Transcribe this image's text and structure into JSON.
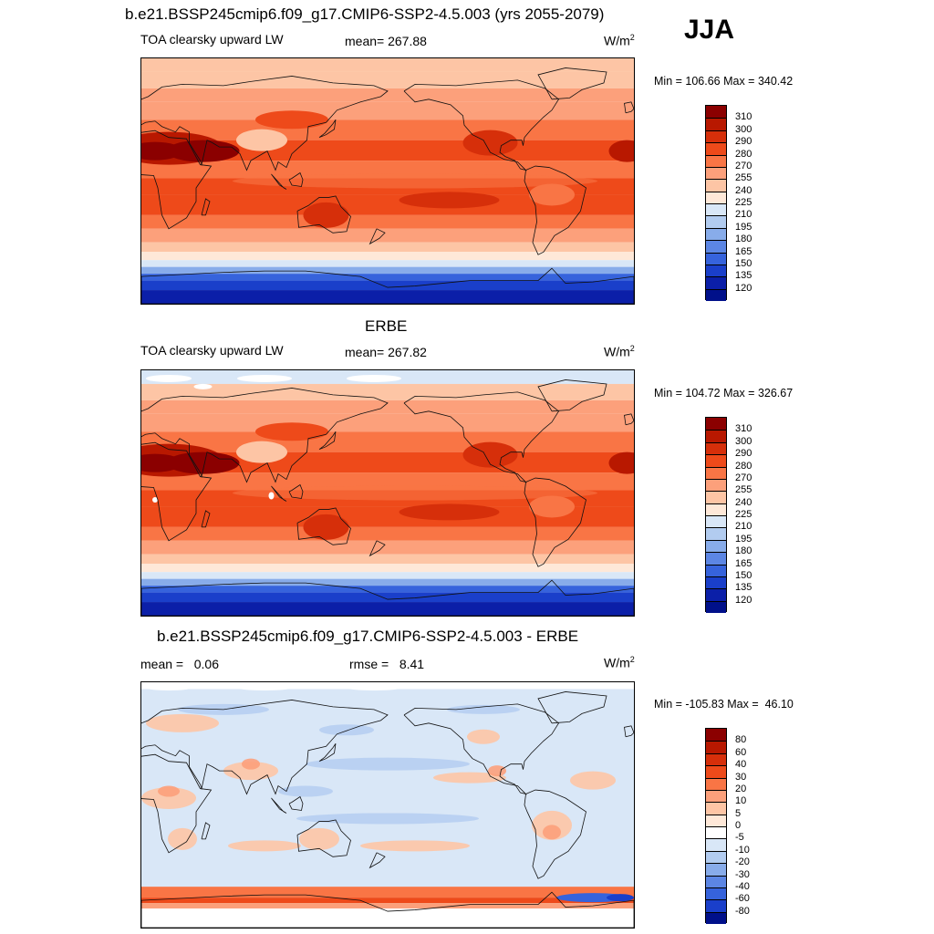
{
  "main_title": "b.e21.BSSP245cmip6.f09_g17.CMIP6-SSP2-4.5.003 (yrs 2055-2079)",
  "season": "JJA",
  "panels": [
    {
      "id": "model",
      "title": "",
      "left_label": "TOA clearsky upward LW",
      "center_label": "mean= 267.88",
      "units": "W/m",
      "units_sup": "2",
      "minmax": "Min = 106.66 Max = 340.42",
      "colorbar": {
        "labels": [
          "310",
          "300",
          "290",
          "280",
          "270",
          "255",
          "240",
          "225",
          "210",
          "195",
          "180",
          "165",
          "150",
          "135",
          "120"
        ],
        "colors": [
          "#8b0000",
          "#b81800",
          "#d62f0a",
          "#ee4a1a",
          "#f97545",
          "#fca07b",
          "#fdc5a5",
          "#fee8d8",
          "#d9e7f7",
          "#b2ccf0",
          "#88acea",
          "#5c86e4",
          "#3663dc",
          "#1a3fca",
          "#0b1fa8",
          "#00108a"
        ]
      },
      "field": "sw"
    },
    {
      "id": "obs",
      "title": "ERBE",
      "left_label": "TOA clearsky upward LW",
      "center_label": "mean= 267.82",
      "units": "W/m",
      "units_sup": "2",
      "minmax": "Min = 104.72 Max = 326.67",
      "colorbar": {
        "labels": [
          "310",
          "300",
          "290",
          "280",
          "270",
          "255",
          "240",
          "225",
          "210",
          "195",
          "180",
          "165",
          "150",
          "135",
          "120"
        ],
        "colors": [
          "#8b0000",
          "#b81800",
          "#d62f0a",
          "#ee4a1a",
          "#f97545",
          "#fca07b",
          "#fdc5a5",
          "#fee8d8",
          "#d9e7f7",
          "#b2ccf0",
          "#88acea",
          "#5c86e4",
          "#3663dc",
          "#1a3fca",
          "#0b1fa8",
          "#00108a"
        ]
      },
      "field": "lw"
    },
    {
      "id": "diff",
      "title": "b.e21.BSSP245cmip6.f09_g17.CMIP6-SSP2-4.5.003 - ERBE",
      "left_label": "mean =   0.06",
      "center_label": "rmse =   8.41",
      "units": "W/m",
      "units_sup": "2",
      "minmax": "Min = -105.83 Max =  46.10",
      "colorbar": {
        "labels": [
          "80",
          "60",
          "40",
          "30",
          "20",
          "10",
          "5",
          "0",
          "-5",
          "-10",
          "-20",
          "-30",
          "-40",
          "-60",
          "-80"
        ],
        "colors": [
          "#8b0000",
          "#b81800",
          "#d62f0a",
          "#ee4a1a",
          "#f97545",
          "#fca07b",
          "#fdc5a5",
          "#fee8d8",
          "#ffffff",
          "#d9e7f7",
          "#b2ccf0",
          "#88acea",
          "#5c86e4",
          "#3663dc",
          "#1a3fca",
          "#00108a"
        ]
      },
      "field": "diff"
    }
  ]
}
